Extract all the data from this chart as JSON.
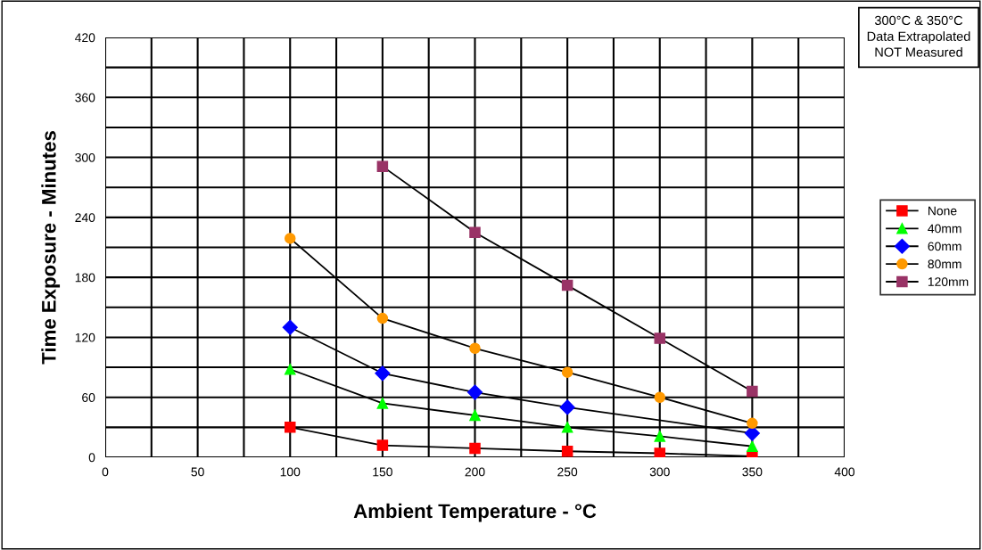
{
  "chart_data": {
    "type": "line",
    "xlabel": "Ambient Temperature - °C",
    "ylabel": "Time Exposure - Minutes",
    "x": [
      100,
      150,
      200,
      250,
      300,
      350
    ],
    "series": [
      {
        "name": "None",
        "color": "#ff0000",
        "marker": "square",
        "values": [
          30,
          12,
          9,
          6,
          4,
          1
        ]
      },
      {
        "name": "40mm",
        "color": "#00ff00",
        "marker": "triangle",
        "values": [
          88,
          54,
          42,
          30,
          21,
          11
        ]
      },
      {
        "name": "60mm",
        "color": "#0000ff",
        "marker": "diamond",
        "values": [
          130,
          84,
          65,
          50,
          null,
          24
        ]
      },
      {
        "name": "80mm",
        "color": "#ff9900",
        "marker": "circle",
        "values": [
          219,
          139,
          109,
          85,
          60,
          34
        ]
      },
      {
        "name": "120mm",
        "color": "#993366",
        "marker": "square",
        "values": [
          null,
          291,
          225,
          172,
          119,
          66
        ]
      }
    ],
    "xlim": [
      0,
      400
    ],
    "ylim": [
      0,
      420
    ],
    "xticks": [
      0,
      {
        "value": 25,
        "label": null
      },
      50,
      {
        "value": 75,
        "label": null
      },
      100,
      {
        "value": 125,
        "label": null
      },
      150,
      {
        "value": 175,
        "label": null
      },
      200,
      {
        "value": 225,
        "label": null
      },
      250,
      {
        "value": 275,
        "label": null
      },
      300,
      {
        "value": 325,
        "label": null
      },
      350,
      {
        "value": 375,
        "label": null
      },
      400
    ],
    "yticks": [
      0,
      {
        "value": 30,
        "label": null
      },
      60,
      {
        "value": 90,
        "label": null
      },
      120,
      {
        "value": 150,
        "label": null
      },
      180,
      {
        "value": 210,
        "label": null
      },
      240,
      {
        "value": 270,
        "label": null
      },
      300,
      {
        "value": 330,
        "label": null
      },
      360,
      {
        "value": 390,
        "label": null
      },
      420
    ],
    "grid": true,
    "legend": "right",
    "line_style": "solid",
    "annotations": [
      "300°C & 350°C\nData Extrapolated\nNOT Measured"
    ]
  }
}
